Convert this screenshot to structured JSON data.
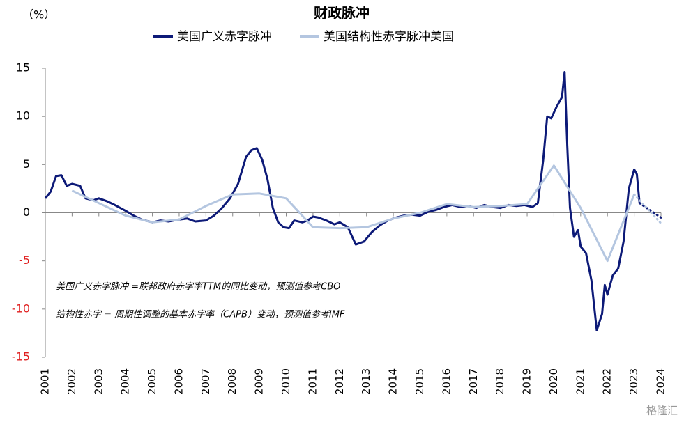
{
  "chart_data": {
    "type": "line",
    "title": "财政脉冲",
    "y_unit": "（%）",
    "annotations": [
      "美国广义赤字脉冲 =联邦政府赤字率TTM的同比变动，预测值参考CBO",
      "结构性赤字 = 周期性调整的基本赤字率（CAPB）变动，预测值参考IMF"
    ],
    "watermark": "格隆汇",
    "xlim": [
      2001,
      2024
    ],
    "xticks": [
      2001,
      2002,
      2003,
      2004,
      2005,
      2006,
      2007,
      2008,
      2009,
      2010,
      2011,
      2012,
      2013,
      2014,
      2015,
      2016,
      2017,
      2018,
      2019,
      2020,
      2021,
      2022,
      2023,
      2024
    ],
    "ylim": [
      -15,
      15
    ],
    "yticks": [
      -15,
      -10,
      -5,
      0,
      5,
      10,
      15
    ],
    "negative_tick_color": "#e02020",
    "series": [
      {
        "name": "美国广义赤字脉冲",
        "color": "#0d1a78",
        "width": 3,
        "x": [
          2001.0,
          2001.2,
          2001.4,
          2001.6,
          2001.8,
          2002.0,
          2002.3,
          2002.5,
          2002.8,
          2003.0,
          2003.3,
          2003.6,
          2004.0,
          2004.3,
          2004.6,
          2005.0,
          2005.3,
          2005.6,
          2006.0,
          2006.3,
          2006.6,
          2007.0,
          2007.3,
          2007.6,
          2007.9,
          2008.2,
          2008.5,
          2008.7,
          2008.9,
          2009.1,
          2009.3,
          2009.5,
          2009.7,
          2009.9,
          2010.1,
          2010.3,
          2010.6,
          2010.8,
          2011.0,
          2011.2,
          2011.5,
          2011.8,
          2012.0,
          2012.3,
          2012.6,
          2012.9,
          2013.2,
          2013.5,
          2013.8,
          2014.1,
          2014.4,
          2014.7,
          2015.0,
          2015.3,
          2015.6,
          2015.9,
          2016.2,
          2016.5,
          2016.8,
          2017.1,
          2017.4,
          2017.7,
          2018.0,
          2018.3,
          2018.6,
          2018.9,
          2019.2,
          2019.4,
          2019.6,
          2019.75,
          2019.9,
          2020.1,
          2020.3,
          2020.4,
          2020.5,
          2020.6,
          2020.75,
          2020.9,
          2021.0,
          2021.2,
          2021.4,
          2021.6,
          2021.8,
          2021.9,
          2022.0,
          2022.2,
          2022.4,
          2022.6,
          2022.8,
          2023.0,
          2023.1,
          2023.2
        ],
        "values": [
          1.5,
          2.2,
          3.8,
          3.9,
          2.8,
          3.0,
          2.8,
          1.5,
          1.3,
          1.5,
          1.2,
          0.8,
          0.2,
          -0.3,
          -0.7,
          -1.0,
          -0.8,
          -0.9,
          -0.7,
          -0.6,
          -0.9,
          -0.8,
          -0.3,
          0.5,
          1.5,
          3.0,
          5.8,
          6.5,
          6.7,
          5.5,
          3.5,
          0.5,
          -1.0,
          -1.5,
          -1.6,
          -0.8,
          -1.0,
          -0.8,
          -0.4,
          -0.5,
          -0.8,
          -1.2,
          -1.0,
          -1.5,
          -3.3,
          -3.0,
          -2.0,
          -1.3,
          -0.8,
          -0.5,
          -0.3,
          -0.2,
          -0.3,
          0.1,
          0.3,
          0.6,
          0.8,
          0.6,
          0.7,
          0.5,
          0.8,
          0.6,
          0.5,
          0.8,
          0.7,
          0.8,
          0.6,
          1.0,
          5.5,
          10.0,
          9.8,
          11.0,
          12.0,
          14.6,
          7.0,
          0.5,
          -2.5,
          -1.8,
          -3.5,
          -4.2,
          -7.0,
          -12.2,
          -10.5,
          -7.5,
          -8.5,
          -6.5,
          -5.8,
          -3.0,
          2.5,
          4.5,
          4.0,
          1.0
        ]
      },
      {
        "name": "美国结构性赤字脉冲美国",
        "color": "#b4c6e0",
        "width": 3,
        "x": [
          2002,
          2003,
          2004,
          2005,
          2006,
          2007,
          2008,
          2009,
          2010,
          2011,
          2012,
          2013,
          2014,
          2015,
          2016,
          2017,
          2018,
          2019,
          2020,
          2021,
          2022,
          2023
        ],
        "values": [
          2.3,
          1.0,
          -0.3,
          -1.0,
          -0.7,
          0.7,
          1.9,
          2.0,
          1.5,
          -1.5,
          -1.6,
          -1.5,
          -0.6,
          0.0,
          0.9,
          0.6,
          0.7,
          0.9,
          4.9,
          0.5,
          -5.0,
          1.9
        ]
      },
      {
        "color": "#0d1a78",
        "width": 3,
        "dash": "dotted",
        "x": [
          2023.2,
          2024.0
        ],
        "values": [
          1.0,
          -0.5
        ]
      },
      {
        "color": "#b4c6e0",
        "width": 3,
        "dash": "dotted",
        "x": [
          2023.0,
          2024.0
        ],
        "values": [
          1.9,
          -1.1
        ]
      }
    ]
  }
}
